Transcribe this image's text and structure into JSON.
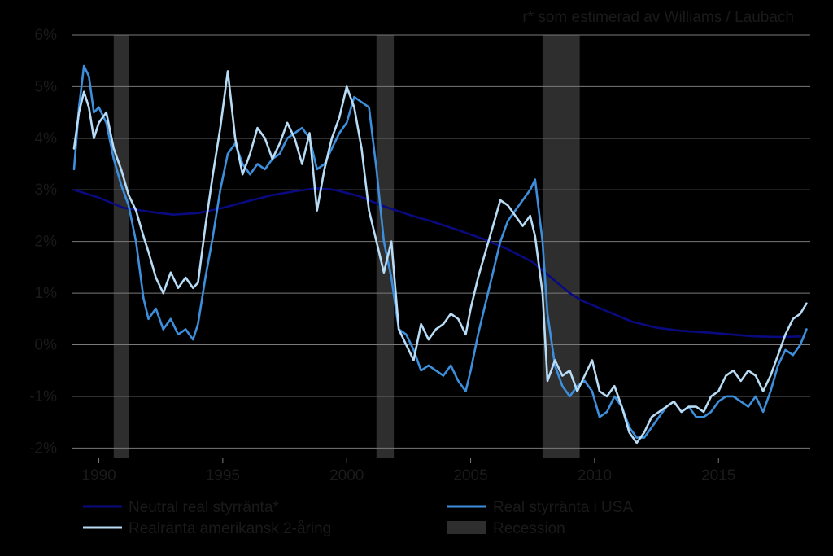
{
  "chart_data": {
    "type": "line",
    "subtitle": "r* som estimerad av Williams / Laubach",
    "xlim": [
      1988.9,
      2018.7
    ],
    "ylim": [
      -2.2,
      6.0
    ],
    "grid": true,
    "y_ticks": [
      {
        "value": 6,
        "label": "6%"
      },
      {
        "value": 5,
        "label": "5%"
      },
      {
        "value": 4,
        "label": "4%"
      },
      {
        "value": 3,
        "label": "3%"
      },
      {
        "value": 2,
        "label": "2%"
      },
      {
        "value": 1,
        "label": "1%"
      },
      {
        "value": 0,
        "label": "0%"
      },
      {
        "value": -1,
        "label": "-1%"
      },
      {
        "value": -2,
        "label": "-2%"
      }
    ],
    "x_ticks": [
      {
        "value": 1990,
        "label": "1990"
      },
      {
        "value": 1995,
        "label": "1995"
      },
      {
        "value": 2000,
        "label": "2000"
      },
      {
        "value": 2005,
        "label": "2005"
      },
      {
        "value": 2010,
        "label": "2010"
      },
      {
        "value": 2015,
        "label": "2015"
      }
    ],
    "recessions": [
      [
        1990.6,
        1991.2
      ],
      [
        2001.2,
        2001.9
      ],
      [
        2007.9,
        2009.4
      ]
    ],
    "legend": {
      "placement": "bottom",
      "items": [
        {
          "label": "Neutral real styrränta*",
          "series": 0
        },
        {
          "label": "Real styrränta i USA",
          "series": 1
        },
        {
          "label": "Realränta amerikansk 2-åring",
          "series": 2
        },
        {
          "label": "Recession",
          "series": "recession"
        }
      ]
    },
    "colors": {
      "neutral": "#0a0a80",
      "real_policy": "#3d8fdc",
      "two_year": "#b8dcf5",
      "recession": "#2e2e2e",
      "grid": "#7a7a7a"
    },
    "series": [
      {
        "name": "Neutral real styrränta*",
        "color": "#0a0a80",
        "x": [
          1989.0,
          1990.0,
          1991.0,
          1992.0,
          1993.0,
          1994.0,
          1995.0,
          1996.0,
          1997.0,
          1998.0,
          1998.8,
          1999.5,
          2000.5,
          2001.5,
          2002.5,
          2003.5,
          2004.5,
          2005.5,
          2006.5,
          2007.5,
          2008.3,
          2009.0,
          2009.5,
          2010.5,
          2011.5,
          2012.5,
          2013.5,
          2014.5,
          2015.5,
          2016.5,
          2017.5,
          2018.3
        ],
        "y": [
          3.0,
          2.85,
          2.65,
          2.58,
          2.52,
          2.55,
          2.65,
          2.78,
          2.9,
          2.98,
          3.03,
          3.0,
          2.88,
          2.68,
          2.52,
          2.38,
          2.22,
          2.05,
          1.85,
          1.6,
          1.28,
          1.0,
          0.85,
          0.65,
          0.45,
          0.33,
          0.27,
          0.24,
          0.2,
          0.16,
          0.15,
          0.16
        ]
      },
      {
        "name": "Real styrränta i USA",
        "color": "#3d8fdc",
        "x": [
          1989.0,
          1989.2,
          1989.4,
          1989.6,
          1989.8,
          1990.0,
          1990.3,
          1990.6,
          1990.9,
          1991.2,
          1991.5,
          1991.8,
          1992.0,
          1992.3,
          1992.6,
          1992.9,
          1993.2,
          1993.5,
          1993.8,
          1994.0,
          1994.3,
          1994.6,
          1994.9,
          1995.2,
          1995.5,
          1995.8,
          1996.1,
          1996.4,
          1996.7,
          1997.0,
          1997.3,
          1997.6,
          1997.9,
          1998.2,
          1998.5,
          1998.8,
          1999.1,
          1999.4,
          1999.7,
          2000.0,
          2000.3,
          2000.6,
          2000.9,
          2001.2,
          2001.5,
          2001.8,
          2002.1,
          2002.4,
          2002.7,
          2003.0,
          2003.3,
          2003.6,
          2003.9,
          2004.2,
          2004.5,
          2004.8,
          2005.0,
          2005.3,
          2005.6,
          2005.9,
          2006.2,
          2006.5,
          2006.8,
          2007.1,
          2007.4,
          2007.6,
          2007.9,
          2008.1,
          2008.4,
          2008.7,
          2009.0,
          2009.3,
          2009.6,
          2009.9,
          2010.2,
          2010.5,
          2010.8,
          2011.1,
          2011.4,
          2011.7,
          2012.0,
          2012.3,
          2012.6,
          2012.9,
          2013.2,
          2013.5,
          2013.8,
          2014.1,
          2014.4,
          2014.7,
          2015.0,
          2015.3,
          2015.6,
          2015.9,
          2016.2,
          2016.5,
          2016.8,
          2017.1,
          2017.4,
          2017.7,
          2018.0,
          2018.3,
          2018.55
        ],
        "y": [
          3.4,
          4.6,
          5.4,
          5.2,
          4.5,
          4.6,
          4.3,
          3.6,
          3.1,
          2.7,
          2.0,
          0.9,
          0.5,
          0.7,
          0.3,
          0.5,
          0.2,
          0.3,
          0.1,
          0.4,
          1.3,
          2.1,
          3.0,
          3.7,
          3.9,
          3.5,
          3.3,
          3.5,
          3.4,
          3.6,
          3.7,
          4.0,
          4.1,
          4.2,
          4.0,
          3.4,
          3.5,
          3.8,
          4.1,
          4.3,
          4.8,
          4.7,
          4.6,
          3.4,
          2.0,
          1.3,
          0.3,
          0.2,
          -0.1,
          -0.5,
          -0.4,
          -0.5,
          -0.6,
          -0.4,
          -0.7,
          -0.9,
          -0.5,
          0.2,
          0.8,
          1.4,
          2.0,
          2.4,
          2.6,
          2.8,
          3.0,
          3.2,
          2.0,
          0.6,
          -0.4,
          -0.8,
          -1.0,
          -0.8,
          -0.7,
          -0.9,
          -1.4,
          -1.3,
          -1.0,
          -1.2,
          -1.6,
          -1.8,
          -1.8,
          -1.6,
          -1.4,
          -1.2,
          -1.1,
          -1.3,
          -1.2,
          -1.4,
          -1.4,
          -1.3,
          -1.1,
          -1.0,
          -1.0,
          -1.1,
          -1.2,
          -1.0,
          -1.3,
          -0.9,
          -0.4,
          -0.1,
          -0.2,
          0.0,
          0.3
        ]
      },
      {
        "name": "Realränta amerikansk 2-åring",
        "color": "#b8dcf5",
        "x": [
          1989.0,
          1989.2,
          1989.4,
          1989.6,
          1989.8,
          1990.0,
          1990.3,
          1990.6,
          1990.9,
          1991.2,
          1991.5,
          1991.8,
          1992.0,
          1992.3,
          1992.6,
          1992.9,
          1993.2,
          1993.5,
          1993.8,
          1994.0,
          1994.3,
          1994.6,
          1994.9,
          1995.2,
          1995.5,
          1995.8,
          1996.1,
          1996.4,
          1996.7,
          1997.0,
          1997.3,
          1997.6,
          1997.9,
          1998.2,
          1998.5,
          1998.8,
          1999.1,
          1999.4,
          1999.7,
          2000.0,
          2000.3,
          2000.6,
          2000.9,
          2001.2,
          2001.5,
          2001.8,
          2002.1,
          2002.4,
          2002.7,
          2003.0,
          2003.3,
          2003.6,
          2003.9,
          2004.2,
          2004.5,
          2004.8,
          2005.0,
          2005.3,
          2005.6,
          2005.9,
          2006.2,
          2006.5,
          2006.8,
          2007.1,
          2007.4,
          2007.6,
          2007.9,
          2008.1,
          2008.4,
          2008.7,
          2009.0,
          2009.3,
          2009.6,
          2009.9,
          2010.2,
          2010.5,
          2010.8,
          2011.1,
          2011.4,
          2011.7,
          2012.0,
          2012.3,
          2012.6,
          2012.9,
          2013.2,
          2013.5,
          2013.8,
          2014.1,
          2014.4,
          2014.7,
          2015.0,
          2015.3,
          2015.6,
          2015.9,
          2016.2,
          2016.5,
          2016.8,
          2017.1,
          2017.4,
          2017.7,
          2018.0,
          2018.3,
          2018.55
        ],
        "y": [
          3.8,
          4.5,
          4.9,
          4.6,
          4.0,
          4.3,
          4.5,
          3.8,
          3.4,
          2.9,
          2.6,
          2.1,
          1.8,
          1.3,
          1.0,
          1.4,
          1.1,
          1.3,
          1.1,
          1.2,
          2.3,
          3.3,
          4.2,
          5.3,
          4.0,
          3.3,
          3.7,
          4.2,
          4.0,
          3.6,
          3.9,
          4.3,
          4.0,
          3.5,
          4.1,
          2.6,
          3.4,
          4.0,
          4.4,
          5.0,
          4.6,
          3.8,
          2.6,
          2.0,
          1.4,
          2.0,
          0.3,
          0.0,
          -0.3,
          0.4,
          0.1,
          0.3,
          0.4,
          0.6,
          0.5,
          0.2,
          0.7,
          1.3,
          1.8,
          2.3,
          2.8,
          2.7,
          2.5,
          2.3,
          2.5,
          2.1,
          1.0,
          -0.7,
          -0.3,
          -0.6,
          -0.5,
          -0.9,
          -0.6,
          -0.3,
          -0.9,
          -1.0,
          -0.8,
          -1.2,
          -1.7,
          -1.9,
          -1.7,
          -1.4,
          -1.3,
          -1.2,
          -1.1,
          -1.3,
          -1.2,
          -1.2,
          -1.3,
          -1.0,
          -0.9,
          -0.6,
          -0.5,
          -0.7,
          -0.5,
          -0.6,
          -0.9,
          -0.6,
          -0.2,
          0.2,
          0.5,
          0.6,
          0.8
        ]
      }
    ]
  }
}
